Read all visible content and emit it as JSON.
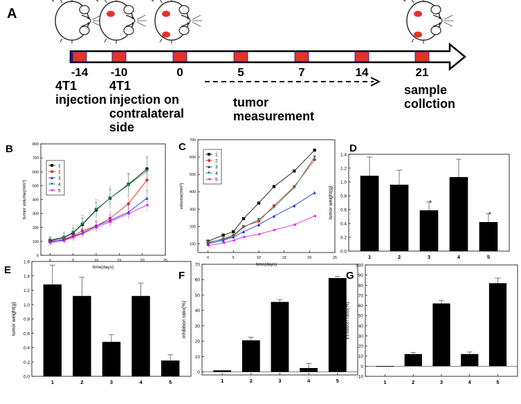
{
  "timeline": {
    "panel_label": "A",
    "days": [
      "-14",
      "-10",
      "0",
      "5",
      "7",
      "14",
      "21"
    ],
    "desc_1": [
      "4T1",
      "injection"
    ],
    "desc_2": [
      "4T1",
      "injection on",
      "contralateral",
      "side"
    ],
    "desc_3": [
      "tumor",
      "measurement"
    ],
    "desc_4": [
      "sample",
      "collction"
    ]
  },
  "colors": {
    "series": [
      "#111111",
      "#e8261f",
      "#1f2fd8",
      "#1e8a5a",
      "#e020e0"
    ],
    "marker_red": "#e4322b",
    "bar": "#000000"
  },
  "chart_data": [
    {
      "panel": "B",
      "type": "line",
      "xlabel": "time(days)",
      "ylabel": "tumor volume(mm³)",
      "xlim": [
        -2,
        25
      ],
      "ylim": [
        0,
        800
      ],
      "xticks": [
        "0",
        "5",
        "10",
        "15",
        "20",
        "25"
      ],
      "yticks": [
        "0",
        "100",
        "200",
        "300",
        "400",
        "500",
        "600",
        "700",
        "800"
      ],
      "x": [
        0,
        3,
        5,
        7,
        10,
        13,
        17,
        21
      ],
      "legend": [
        "1",
        "2",
        "3",
        "4",
        "5"
      ],
      "series": [
        {
          "name": "1",
          "values": [
            105,
            125,
            160,
            220,
            325,
            410,
            510,
            620
          ],
          "err": [
            25,
            30,
            35,
            45,
            55,
            65,
            75,
            90
          ]
        },
        {
          "name": "2",
          "values": [
            95,
            115,
            140,
            175,
            210,
            265,
            370,
            540
          ],
          "err": [
            20,
            25,
            30,
            35,
            40,
            45,
            60,
            80
          ]
        },
        {
          "name": "3",
          "values": [
            100,
            110,
            135,
            160,
            210,
            250,
            310,
            410
          ],
          "err": [
            20,
            25,
            30,
            30,
            35,
            40,
            45,
            55
          ]
        },
        {
          "name": "4",
          "values": [
            110,
            130,
            165,
            225,
            330,
            410,
            505,
            605
          ],
          "err": [
            25,
            35,
            45,
            60,
            70,
            80,
            85,
            95
          ]
        },
        {
          "name": "5",
          "values": [
            90,
            105,
            130,
            155,
            200,
            240,
            300,
            360
          ],
          "err": [
            20,
            20,
            25,
            30,
            35,
            35,
            40,
            50
          ]
        }
      ]
    },
    {
      "panel": "C",
      "type": "line",
      "xlabel": "time(days)",
      "ylabel": "volume(mm³)",
      "xlim": [
        -2,
        25
      ],
      "ylim": [
        50,
        700
      ],
      "xticks": [
        "0",
        "5",
        "10",
        "15",
        "20",
        "25"
      ],
      "yticks": [
        "100",
        "200",
        "300",
        "400",
        "500",
        "600",
        "700"
      ],
      "x": [
        0,
        3,
        5,
        7,
        10,
        13,
        17,
        21
      ],
      "legend": [
        "1",
        "2",
        "3",
        "4",
        "5"
      ],
      "series": [
        {
          "name": "1",
          "values": [
            115,
            150,
            170,
            245,
            335,
            430,
            520,
            640
          ]
        },
        {
          "name": "2",
          "values": [
            105,
            130,
            150,
            200,
            230,
            320,
            430,
            585
          ]
        },
        {
          "name": "3",
          "values": [
            100,
            120,
            140,
            170,
            210,
            260,
            320,
            395
          ]
        },
        {
          "name": "4",
          "values": [
            110,
            125,
            145,
            195,
            240,
            310,
            425,
            600
          ]
        },
        {
          "name": "5",
          "values": [
            90,
            105,
            120,
            140,
            155,
            180,
            210,
            260
          ]
        }
      ]
    },
    {
      "panel": "D",
      "type": "bar",
      "xlabel": "",
      "ylabel": "tumor weight(g)",
      "categories": [
        "1",
        "2",
        "3",
        "4",
        "5"
      ],
      "values": [
        1.09,
        0.96,
        0.59,
        1.07,
        0.42
      ],
      "err": [
        0.27,
        0.21,
        0.12,
        0.26,
        0.12
      ],
      "annotations": [
        "",
        "",
        "*",
        "",
        "*"
      ],
      "ylim": [
        0,
        1.4
      ],
      "yticks": [
        "0.0",
        "0.2",
        "0.4",
        "0.6",
        "0.8",
        "1.0",
        "1.2",
        "1.4"
      ]
    },
    {
      "panel": "E",
      "type": "bar",
      "xlabel": "",
      "ylabel": "tumor weight(g)",
      "categories": [
        "1",
        "2",
        "3",
        "4",
        "5"
      ],
      "values": [
        1.28,
        1.12,
        0.48,
        1.12,
        0.22
      ],
      "err": [
        0.27,
        0.26,
        0.1,
        0.18,
        0.08
      ],
      "annotations": [
        "",
        "",
        "",
        "",
        ""
      ],
      "ylim": [
        0,
        1.6
      ],
      "yticks": [
        "0.0",
        "0.2",
        "0.4",
        "0.6",
        "0.8",
        "1.0",
        "1.2",
        "1.4",
        "1.6"
      ]
    },
    {
      "panel": "F",
      "type": "bar",
      "xlabel": "",
      "ylabel": "inhibition ratio(%)",
      "categories": [
        "1",
        "2",
        "3",
        "4",
        "5"
      ],
      "values": [
        1,
        20.5,
        45.5,
        2.5,
        61
      ],
      "err": [
        0,
        2,
        1.5,
        3,
        1
      ],
      "annotations": [
        "",
        "",
        "",
        "",
        ""
      ],
      "ylim": [
        -2,
        70
      ],
      "yticks": [
        "0",
        "10",
        "20",
        "30",
        "40",
        "50",
        "60",
        "70"
      ]
    },
    {
      "panel": "G",
      "type": "bar",
      "xlabel": "",
      "ylabel": "inhibition ratio(%)",
      "categories": [
        "1",
        "2",
        "3",
        "4",
        "5"
      ],
      "values": [
        0,
        12,
        62,
        12,
        82
      ],
      "err": [
        0,
        1.5,
        3,
        2,
        5
      ],
      "annotations": [
        "",
        "",
        "",
        "",
        ""
      ],
      "ylim": [
        -10,
        100
      ],
      "yticks": [
        "-10",
        "0",
        "10",
        "20",
        "30",
        "40",
        "50",
        "60",
        "70",
        "80",
        "90",
        "100"
      ]
    }
  ]
}
